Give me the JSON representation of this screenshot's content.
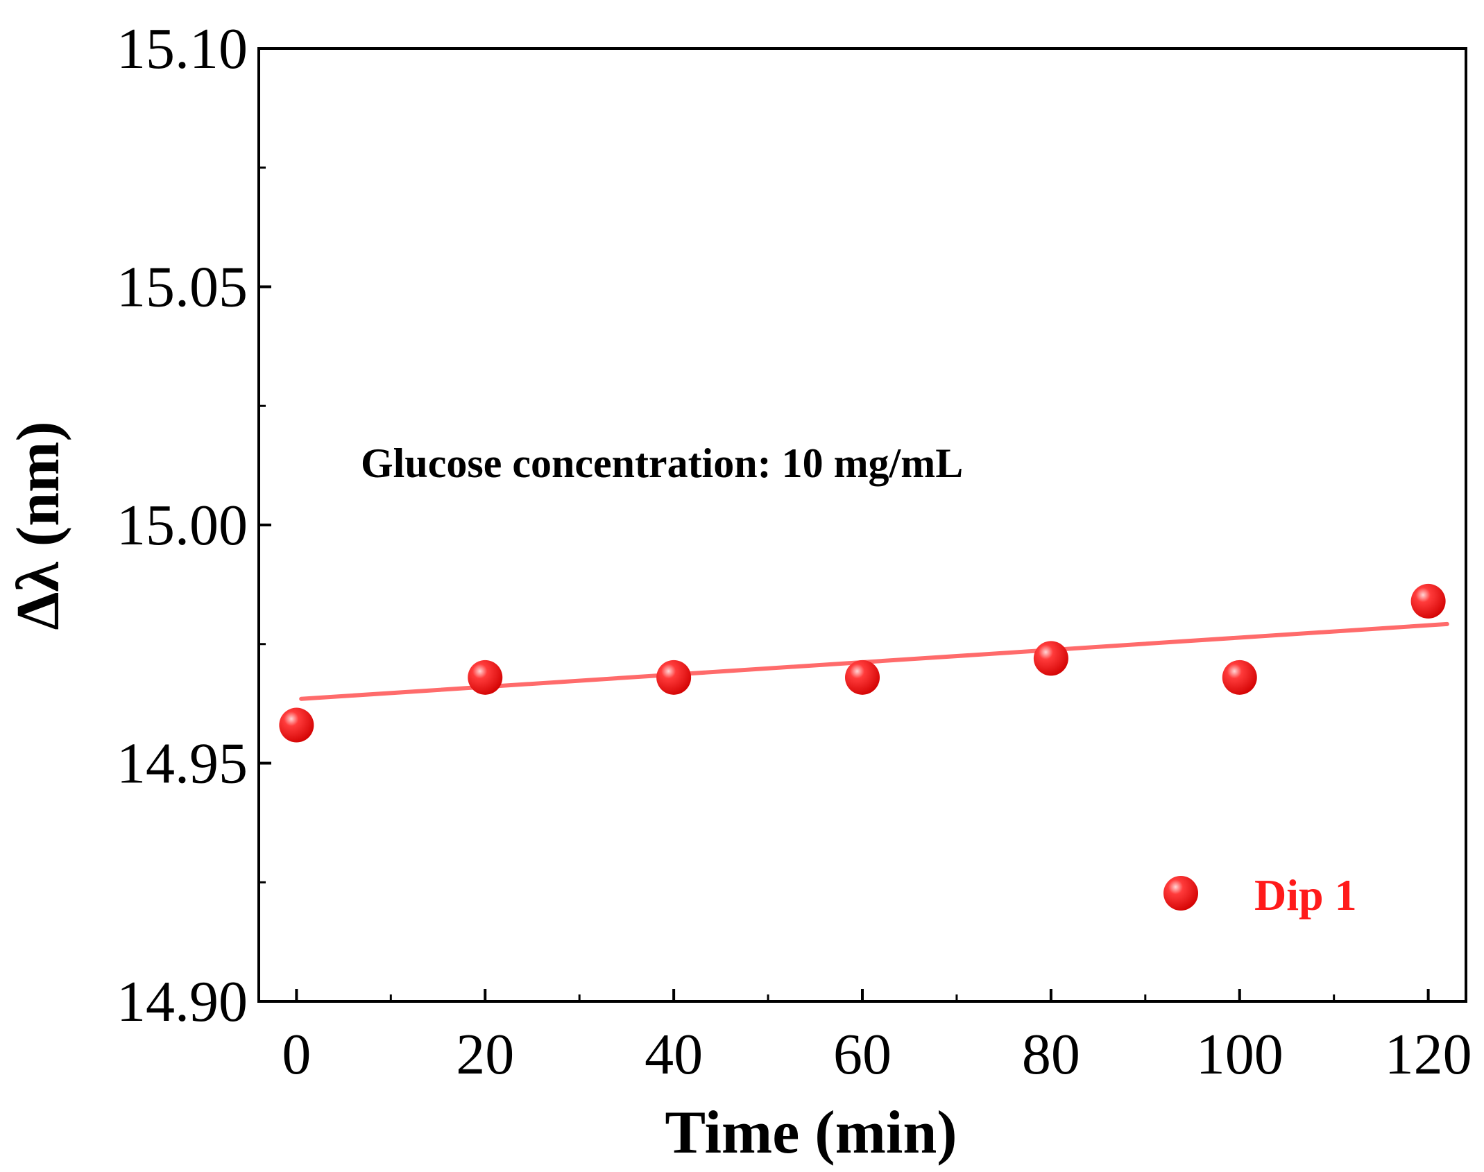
{
  "chart_data": {
    "type": "scatter",
    "xlabel": "Time (min)",
    "ylabel": "Δλ (nm)",
    "xlim": [
      -4,
      124
    ],
    "ylim": [
      14.9,
      15.1
    ],
    "xticks": [
      0,
      20,
      40,
      60,
      80,
      100,
      120
    ],
    "xtick_labels": [
      "0",
      "20",
      "40",
      "60",
      "80",
      "100",
      "120"
    ],
    "yticks": [
      14.9,
      14.95,
      15.0,
      15.05,
      15.1
    ],
    "ytick_labels": [
      "14.90",
      "14.95",
      "15.00",
      "15.05",
      "15.10"
    ],
    "annotation": "Glucose concentration: 10 mg/mL",
    "series": [
      {
        "name": "Dip 1",
        "color": "#ff1a1a",
        "x": [
          0,
          20,
          40,
          60,
          80,
          100,
          120
        ],
        "y": [
          14.958,
          14.968,
          14.968,
          14.968,
          14.972,
          14.968,
          14.984
        ]
      }
    ],
    "fit_line": {
      "color": "#ff6b6b",
      "x": [
        0.5,
        122
      ],
      "y": [
        14.9635,
        14.9792
      ]
    },
    "legend": {
      "position": "bottom-right",
      "label": "Dip 1"
    }
  }
}
